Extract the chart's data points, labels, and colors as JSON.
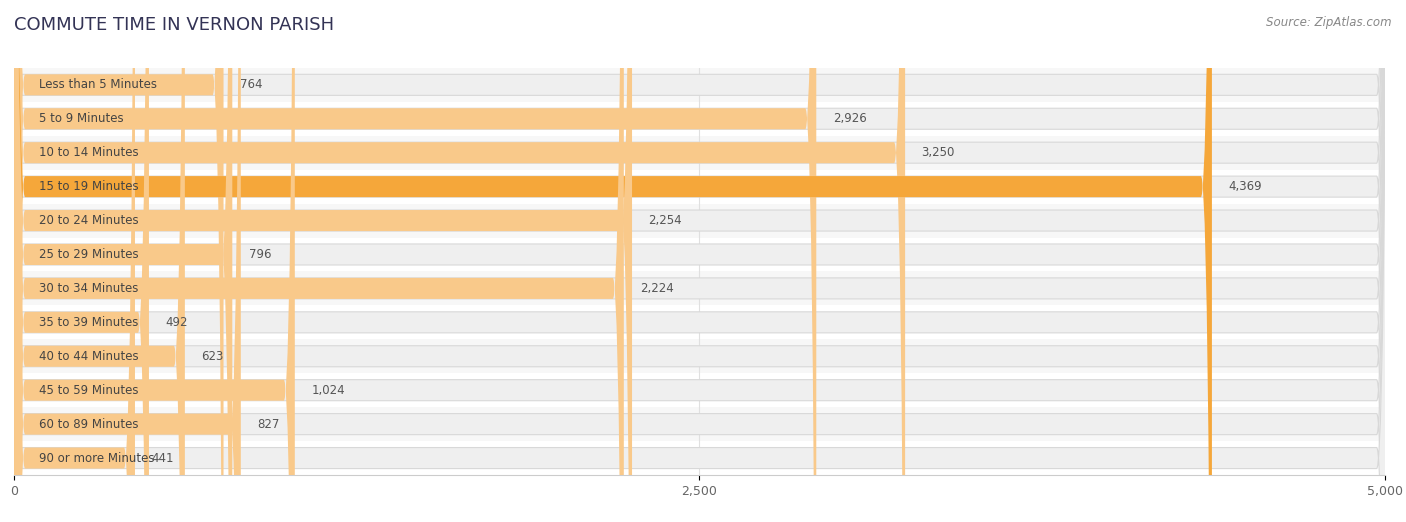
{
  "title": "COMMUTE TIME IN VERNON PARISH",
  "source": "Source: ZipAtlas.com",
  "categories": [
    "Less than 5 Minutes",
    "5 to 9 Minutes",
    "10 to 14 Minutes",
    "15 to 19 Minutes",
    "20 to 24 Minutes",
    "25 to 29 Minutes",
    "30 to 34 Minutes",
    "35 to 39 Minutes",
    "40 to 44 Minutes",
    "45 to 59 Minutes",
    "60 to 89 Minutes",
    "90 or more Minutes"
  ],
  "values": [
    764,
    2926,
    3250,
    4369,
    2254,
    796,
    2224,
    492,
    623,
    1024,
    827,
    441
  ],
  "bar_color_normal": "#f9c98a",
  "bar_color_highlight": "#f5a73a",
  "highlight_index": 3,
  "pill_bg_color": "#efefef",
  "pill_border_color": "#d8d8d8",
  "label_color": "#444444",
  "value_color": "#555555",
  "background_color": "#ffffff",
  "row_bg_even": "#f7f7f7",
  "row_bg_odd": "#ffffff",
  "xlim": [
    0,
    5000
  ],
  "xticks": [
    0,
    2500,
    5000
  ],
  "title_fontsize": 13,
  "source_fontsize": 8.5,
  "label_fontsize": 8.5,
  "value_fontsize": 8.5,
  "bar_height": 0.62,
  "grid_color": "#e0e0e0",
  "title_color": "#333355"
}
